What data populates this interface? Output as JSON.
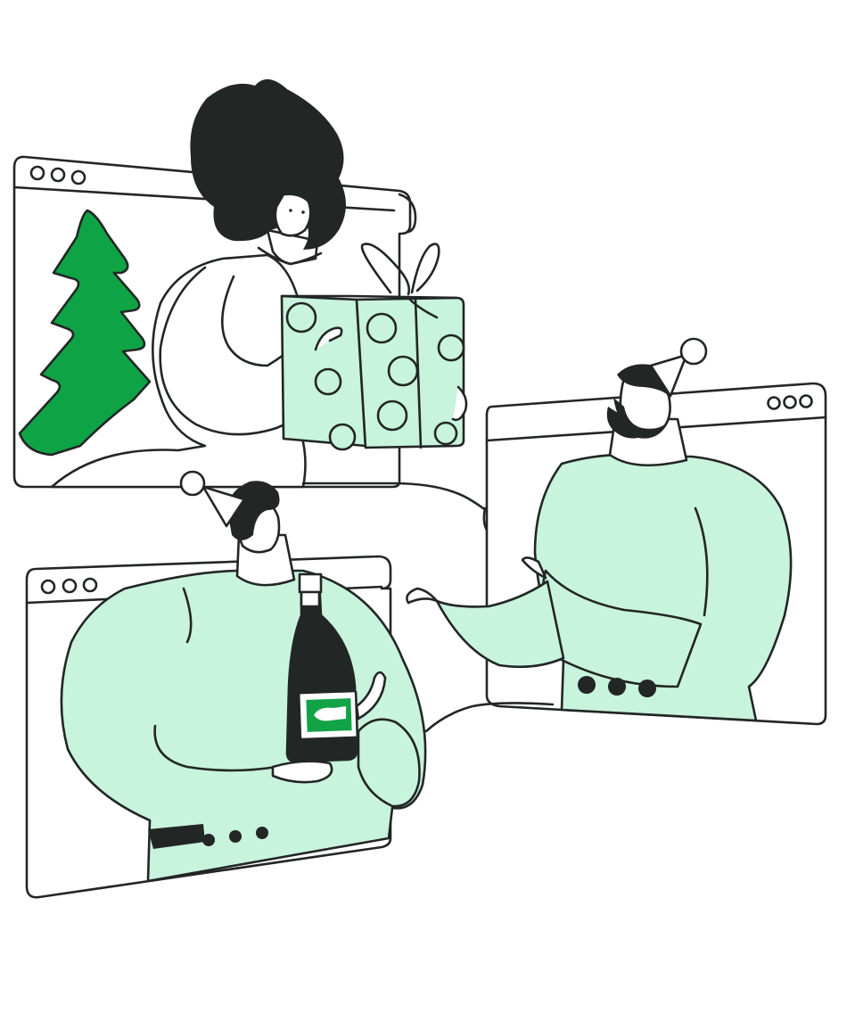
{
  "scene": {
    "description_hidden": "",
    "palette": {
      "ink": "#222625",
      "tree_green": "#0ea445",
      "mint": "#c8f3dc",
      "label_green": "#12a347",
      "white": "#ffffff"
    },
    "windows": [
      {
        "id": "top-left",
        "dots": 3
      },
      {
        "id": "right",
        "dots": 3
      },
      {
        "id": "bottom-left",
        "dots": 3
      }
    ],
    "icons": {
      "tree": "christmas-tree-icon",
      "gift": "gift-box-icon",
      "bottle": "champagne-bottle-icon",
      "hat": "party-hat-icon"
    }
  }
}
